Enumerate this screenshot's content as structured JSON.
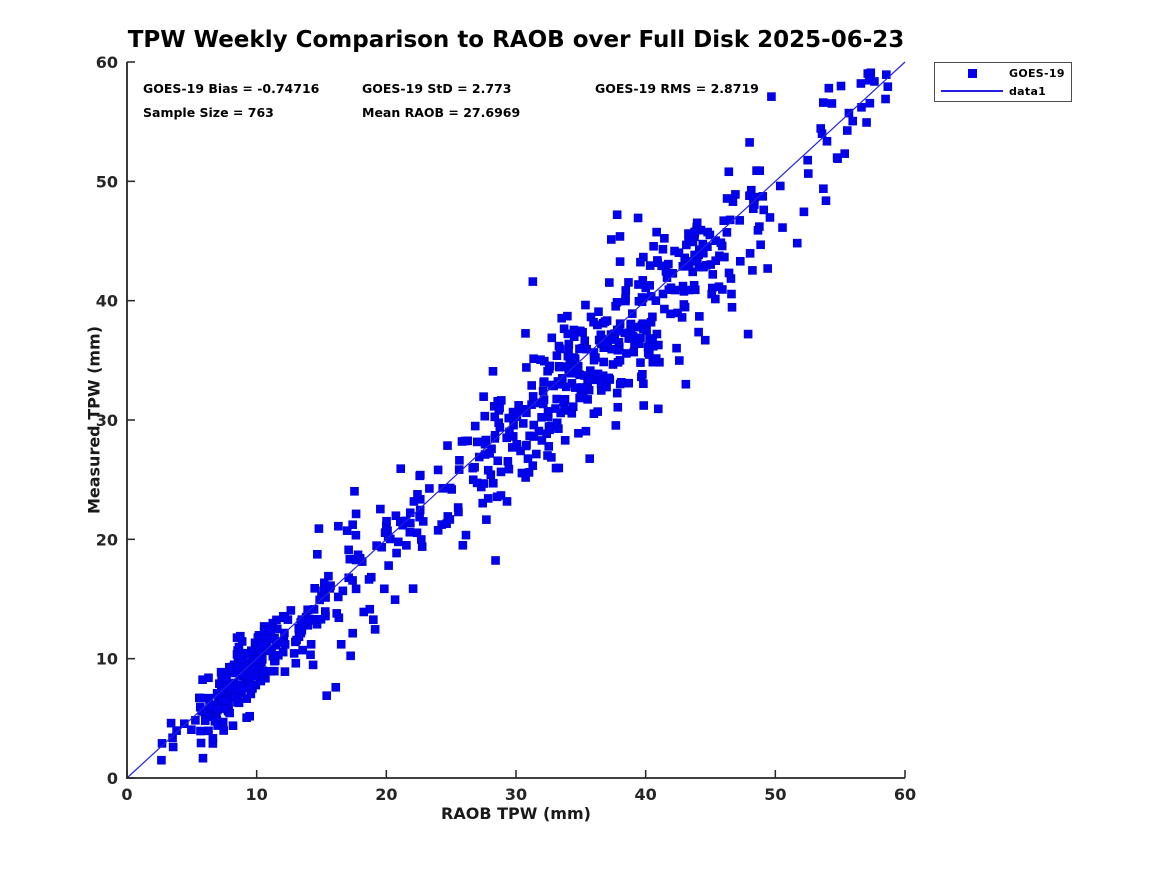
{
  "page": {
    "background": "#ffffff"
  },
  "chart_data": {
    "type": "scatter",
    "title": "TPW Weekly Comparison to RAOB over Full Disk 2025-06-23",
    "xlabel": "RAOB TPW (mm)",
    "ylabel": "Measured TPW (mm)",
    "xlim": [
      0,
      60
    ],
    "ylim": [
      0,
      60
    ],
    "x_ticks": [
      0,
      10,
      20,
      30,
      40,
      50,
      60
    ],
    "y_ticks": [
      0,
      10,
      20,
      30,
      40,
      50,
      60
    ],
    "grid": false,
    "axis_color": "#262626",
    "annotations": {
      "bias": "GOES-19 Bias = -0.74716",
      "std": "GOES-19 StD = 2.773",
      "rms": "GOES-19 RMS = 2.8719",
      "sample": "Sample Size = 763",
      "mean_raob": "Mean RAOB = 27.6969"
    },
    "stats": {
      "bias": -0.74716,
      "std": 2.773,
      "rms": 2.8719,
      "sample_size": 763,
      "mean_raob": 27.6969
    },
    "legend": {
      "position": "outside-top-right",
      "entries": [
        {
          "label": "GOES-19",
          "type": "marker",
          "marker": "square",
          "color": "#0101ef"
        },
        {
          "label": "data1",
          "type": "line",
          "color": "#2222e0"
        }
      ]
    },
    "series": [
      {
        "name": "GOES-19",
        "kind": "scatter",
        "marker": "square",
        "marker_size_px": 8,
        "color": "#0101ef",
        "edge_color": "#0000c8",
        "n_points": 763
      },
      {
        "name": "data1",
        "kind": "line",
        "color": "#2222e0",
        "points": [
          [
            0,
            0
          ],
          [
            60,
            60
          ]
        ]
      }
    ],
    "anchor_points": [
      [
        2.7,
        2.9
      ],
      [
        3.4,
        4.6
      ],
      [
        14.2,
        11.2
      ],
      [
        15.4,
        6.9
      ],
      [
        16.1,
        7.6
      ],
      [
        14.8,
        20.9
      ],
      [
        16.3,
        21.1
      ],
      [
        25.9,
        19.5
      ],
      [
        31.3,
        41.6
      ],
      [
        37.8,
        47.2
      ],
      [
        43.1,
        33.0
      ],
      [
        47.9,
        37.2
      ],
      [
        49.7,
        57.1
      ],
      [
        53.7,
        56.6
      ],
      [
        54.8,
        51.9
      ],
      [
        56.6,
        58.2
      ],
      [
        58.5,
        56.9
      ]
    ],
    "scatter_generation": {
      "seed": 20250623,
      "relationship": "y = x + bias + noise (identity comparison, bias -0.747, std 2.773)",
      "components": [
        {
          "dist": "gauss",
          "weight": 0.3,
          "mean": 8.8,
          "std": 2.4,
          "clamp_min": 2.5,
          "clamp_max": 15
        },
        {
          "dist": "uniform",
          "weight": 0.1,
          "min": 13,
          "max": 23,
          "clamp_min": 13,
          "clamp_max": 23
        },
        {
          "dist": "gauss",
          "weight": 0.44,
          "mean": 37,
          "std": 6.5,
          "clamp_min": 21.5,
          "clamp_max": 50
        },
        {
          "dist": "uniform",
          "weight": 0.16,
          "min": 23,
          "max": 59,
          "clamp_min": 23,
          "clamp_max": 59
        }
      ],
      "noise": {
        "base_bias": -0.3,
        "bias_slope": -0.02,
        "sigma_low": 1.5,
        "sigma_mid": 2.6,
        "sigma_high": 2.9,
        "low_cut": 14,
        "mid_cut": 22
      }
    }
  }
}
